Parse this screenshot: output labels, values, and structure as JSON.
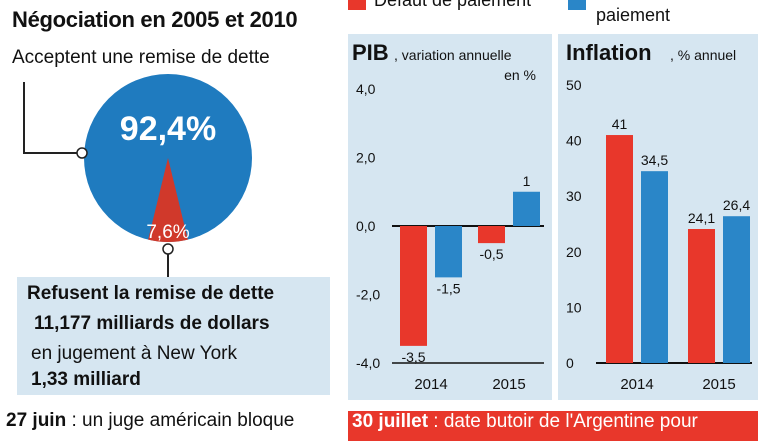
{
  "left": {
    "title": "Négociation en 2005 et 2010",
    "accept_label": "Acceptent une remise de dette",
    "refuse": {
      "line1": "Refusent la remise de dette",
      "line2": "11,177 milliards de dollars",
      "line3": "en jugement à New York",
      "line4": "1,33 milliard"
    },
    "footer_bold": "27 juin",
    "footer_text": " : un juge américain bloque"
  },
  "legend": {
    "items": [
      {
        "label": "Défaut de paiement",
        "color": "#e8372b"
      },
      {
        "label": "paiement",
        "color": "#2a86c8"
      }
    ]
  },
  "footer_right": {
    "bold": "30 juillet",
    "text": " : date butoir de l'Argentine pour"
  },
  "chart_data": [
    {
      "type": "pie",
      "title": "Négociation en 2005 et 2010",
      "slices": [
        {
          "label": "Acceptent une remise de dette",
          "value": 92.4,
          "display": "92,4%",
          "color": "#1f7bbf"
        },
        {
          "label": "Refusent la remise de dette",
          "value": 7.6,
          "display": "7,6%",
          "color": "#d0392b"
        }
      ]
    },
    {
      "type": "bar",
      "title": "PIB",
      "subtitle": ", variation annuelle en %",
      "subtitle_line1": ", variation annuelle",
      "subtitle_line2": "en %",
      "categories": [
        "2014",
        "2015"
      ],
      "series": [
        {
          "name": "Défaut de paiement",
          "color": "#e8372b",
          "values": [
            -3.5,
            -0.5
          ],
          "labels": [
            "-3,5",
            "-0,5"
          ]
        },
        {
          "name": "paiement",
          "color": "#2a86c8",
          "values": [
            -1.5,
            1
          ],
          "labels": [
            "-1,5",
            "1"
          ]
        }
      ],
      "ylim": [
        -4,
        4
      ],
      "yticks": [
        4,
        2,
        0,
        -2,
        -4
      ],
      "ytick_labels": [
        "4,0",
        "2,0",
        "0,0",
        "-2,0",
        "-4,0"
      ]
    },
    {
      "type": "bar",
      "title": "Inflation",
      "subtitle": ",  % annuel",
      "categories": [
        "2014",
        "2015"
      ],
      "series": [
        {
          "name": "Défaut de paiement",
          "color": "#e8372b",
          "values": [
            41,
            24.1
          ],
          "labels": [
            "41",
            "24,1"
          ]
        },
        {
          "name": "paiement",
          "color": "#2a86c8",
          "values": [
            34.5,
            26.4
          ],
          "labels": [
            "34,5",
            "26,4"
          ]
        }
      ],
      "ylim": [
        0,
        50
      ],
      "yticks": [
        50,
        40,
        30,
        20,
        10,
        0
      ],
      "ytick_labels": [
        "50",
        "40",
        "30",
        "20",
        "10",
        "0"
      ]
    }
  ]
}
